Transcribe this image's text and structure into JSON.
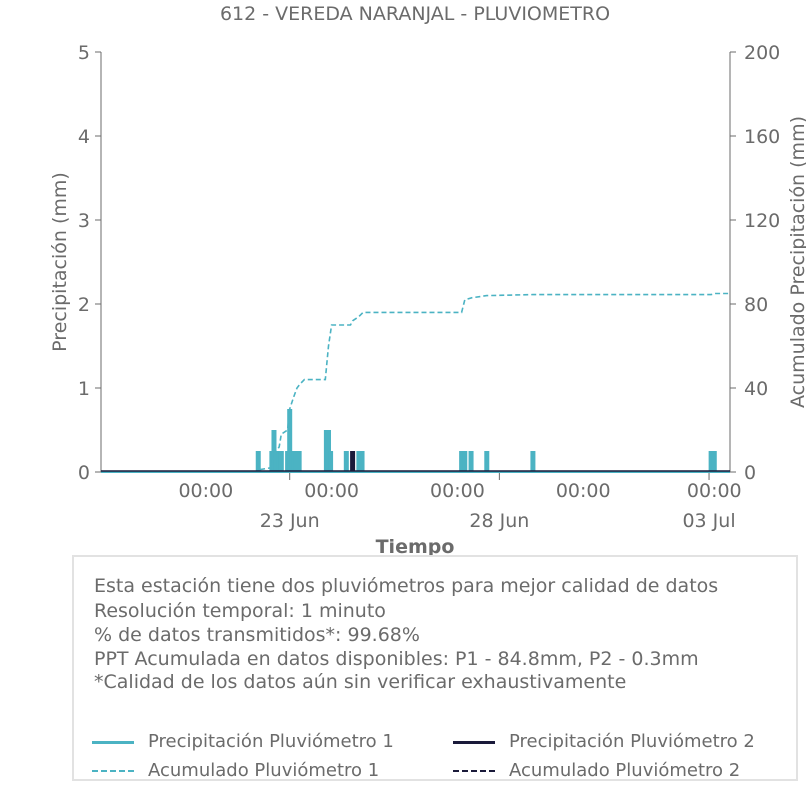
{
  "chart_data": {
    "type": "bar",
    "title": "612 - VEREDA NARANJAL - PLUVIOMETRO",
    "xlabel": "Tiempo",
    "ylabel": "Precipitación (mm)",
    "y2label": "Acumulado Precipitación (mm)",
    "ylim": [
      0,
      5
    ],
    "y2lim": [
      0,
      200
    ],
    "yticks": [
      "0",
      "1",
      "2",
      "3",
      "4",
      "5"
    ],
    "y2ticks": [
      "0",
      "40",
      "80",
      "120",
      "160",
      "200"
    ],
    "x_day_range": [
      0,
      30
    ],
    "x_time_ticks": [
      {
        "day": 5,
        "label": "00:00"
      },
      {
        "day": 11,
        "label": "00:00"
      },
      {
        "day": 17,
        "label": "00:00"
      },
      {
        "day": 23,
        "label": "00:00"
      },
      {
        "day": 29.25,
        "label": "00:00"
      }
    ],
    "x_date_ticks": [
      {
        "day": 9,
        "label": "23 Jun"
      },
      {
        "day": 19,
        "label": "28 Jun"
      },
      {
        "day": 29,
        "label": "03 Jul"
      }
    ],
    "grid": false,
    "series": [
      {
        "name": "Precipitación Pluviómetro 1",
        "kind": "bar",
        "color": "#4bb3c3",
        "points": [
          [
            7.5,
            0.25
          ],
          [
            8.15,
            0.25
          ],
          [
            8.25,
            0.5
          ],
          [
            8.35,
            0.25
          ],
          [
            8.5,
            0.25
          ],
          [
            8.6,
            0.25
          ],
          [
            8.9,
            0.25
          ],
          [
            9.0,
            0.75
          ],
          [
            9.1,
            0.25
          ],
          [
            9.2,
            0.25
          ],
          [
            9.3,
            0.25
          ],
          [
            9.45,
            0.25
          ],
          [
            10.75,
            0.5
          ],
          [
            10.85,
            0.5
          ],
          [
            10.95,
            0.25
          ],
          [
            11.7,
            0.25
          ],
          [
            12.3,
            0.25
          ],
          [
            12.45,
            0.25
          ],
          [
            17.2,
            0.25
          ],
          [
            17.35,
            0.25
          ],
          [
            17.65,
            0.25
          ],
          [
            18.4,
            0.25
          ],
          [
            20.6,
            0.25
          ],
          [
            29.1,
            0.25
          ],
          [
            29.25,
            0.25
          ]
        ]
      },
      {
        "name": "Precipitación Pluviómetro 2",
        "kind": "bar",
        "color": "#1a1a3a",
        "points": [
          [
            12.0,
            0.25
          ]
        ]
      },
      {
        "name": "Acumulado Pluviómetro 1",
        "kind": "cumulative-line",
        "axis": "right",
        "dash": "5,3",
        "color": "#4bb3c3",
        "points": [
          [
            0,
            0
          ],
          [
            7.4,
            0
          ],
          [
            7.5,
            1
          ],
          [
            8.1,
            2
          ],
          [
            8.25,
            8
          ],
          [
            8.5,
            12
          ],
          [
            8.6,
            18
          ],
          [
            8.9,
            20
          ],
          [
            9.0,
            30
          ],
          [
            9.2,
            36
          ],
          [
            9.35,
            40
          ],
          [
            9.5,
            42
          ],
          [
            9.7,
            44
          ],
          [
            10.7,
            44
          ],
          [
            10.85,
            60
          ],
          [
            11.0,
            70
          ],
          [
            11.9,
            70
          ],
          [
            12.0,
            72
          ],
          [
            12.3,
            74
          ],
          [
            12.5,
            76
          ],
          [
            17.2,
            76
          ],
          [
            17.35,
            82
          ],
          [
            17.7,
            83
          ],
          [
            18.4,
            84
          ],
          [
            20.6,
            84.5
          ],
          [
            29.1,
            84.5
          ],
          [
            29.3,
            85
          ],
          [
            30,
            85
          ]
        ]
      },
      {
        "name": "Acumulado Pluviómetro 2",
        "kind": "cumulative-line",
        "axis": "right",
        "dash": "5,3",
        "color": "#1a1a3a",
        "points": [
          [
            0,
            0
          ],
          [
            11.9,
            0
          ],
          [
            12.0,
            0.3
          ],
          [
            30,
            0.3
          ]
        ]
      }
    ]
  },
  "info": {
    "lines": [
      "Esta estación tiene dos pluviómetros para mejor calidad de datos",
      "Resolución temporal: 1 minuto",
      "% de datos transmitidos*: 99.68%",
      "PPT Acumulada en datos disponibles: P1 - 84.8mm, P2 - 0.3mm",
      "*Calidad de los datos aún sin verificar exhaustivamente"
    ]
  },
  "legend": [
    {
      "label": "Precipitación Pluviómetro 1",
      "color": "#4bb3c3",
      "style": "solid"
    },
    {
      "label": "Precipitación Pluviómetro 2",
      "color": "#1a1a3a",
      "style": "solid"
    },
    {
      "label": "Acumulado Pluviómetro 1",
      "color": "#4bb3c3",
      "style": "dashed"
    },
    {
      "label": "Acumulado Pluviómetro 2",
      "color": "#1a1a3a",
      "style": "dashed"
    }
  ]
}
